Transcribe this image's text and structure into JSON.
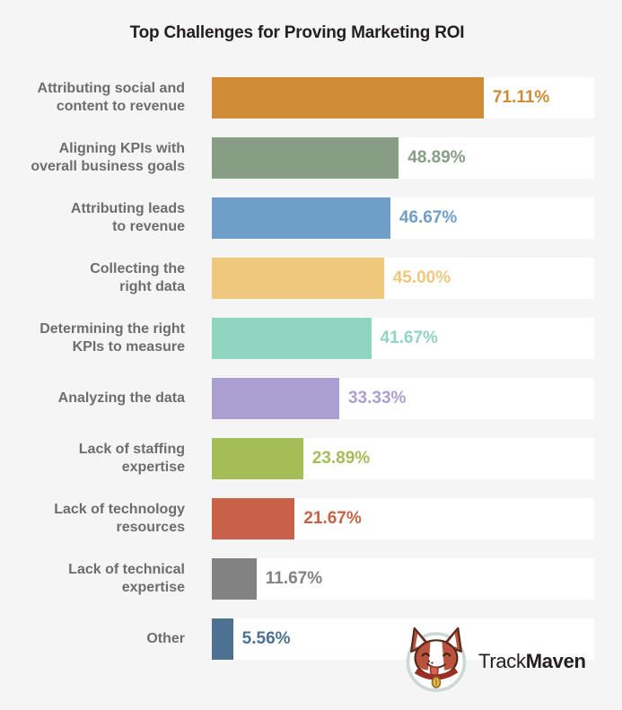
{
  "title": "Top Challenges for Proving Marketing ROI",
  "chart_data": {
    "type": "bar",
    "orientation": "horizontal",
    "title": "Top Challenges for Proving Marketing ROI",
    "xlabel": "",
    "ylabel": "",
    "xlim": [
      0,
      100
    ],
    "value_format": "percent",
    "grid": false,
    "legend": false,
    "categories": [
      "Attributing social and content to revenue",
      "Aligning KPIs with overall business goals",
      "Attributing leads to revenue",
      "Collecting the right data",
      "Determining the right KPIs to measure",
      "Analyzing the data",
      "Lack of staffing expertise",
      "Lack of technology resources",
      "Lack of technical expertise",
      "Other"
    ],
    "values": [
      71.11,
      48.89,
      46.67,
      45.0,
      41.67,
      33.33,
      23.89,
      21.67,
      11.67,
      5.56
    ],
    "items": [
      {
        "label": "Attributing social and\ncontent to revenue",
        "value": 71.11,
        "display": "71.11%",
        "color": "#cf8b36"
      },
      {
        "label": "Aligning KPIs with\noverall business goals",
        "value": 48.89,
        "display": "48.89%",
        "color": "#879e85"
      },
      {
        "label": "Attributing leads\nto revenue",
        "value": 46.67,
        "display": "46.67%",
        "color": "#6f9fc9"
      },
      {
        "label": "Collecting the\nright data",
        "value": 45.0,
        "display": "45.00%",
        "color": "#f0c87d"
      },
      {
        "label": "Determining the right\nKPIs to measure",
        "value": 41.67,
        "display": "41.67%",
        "color": "#90d5c0"
      },
      {
        "label": "Analyzing the data",
        "value": 33.33,
        "display": "33.33%",
        "color": "#ab9fd1"
      },
      {
        "label": "Lack of staffing\nexpertise",
        "value": 23.89,
        "display": "23.89%",
        "color": "#a3bd57"
      },
      {
        "label": "Lack of technology\nresources",
        "value": 21.67,
        "display": "21.67%",
        "color": "#c86147"
      },
      {
        "label": "Lack of technical\nexpertise",
        "value": 11.67,
        "display": "11.67%",
        "color": "#828282"
      },
      {
        "label": "Other",
        "value": 5.56,
        "display": "5.56%",
        "color": "#4c7191"
      }
    ]
  },
  "brand": {
    "name_regular": "Track",
    "name_bold": "Maven",
    "logo": "corgi-mascot"
  },
  "colors": {
    "background": "#f5f5f5",
    "bar_track": "#ffffff",
    "label_text": "#6d6d6f",
    "title_text": "#231f20"
  }
}
